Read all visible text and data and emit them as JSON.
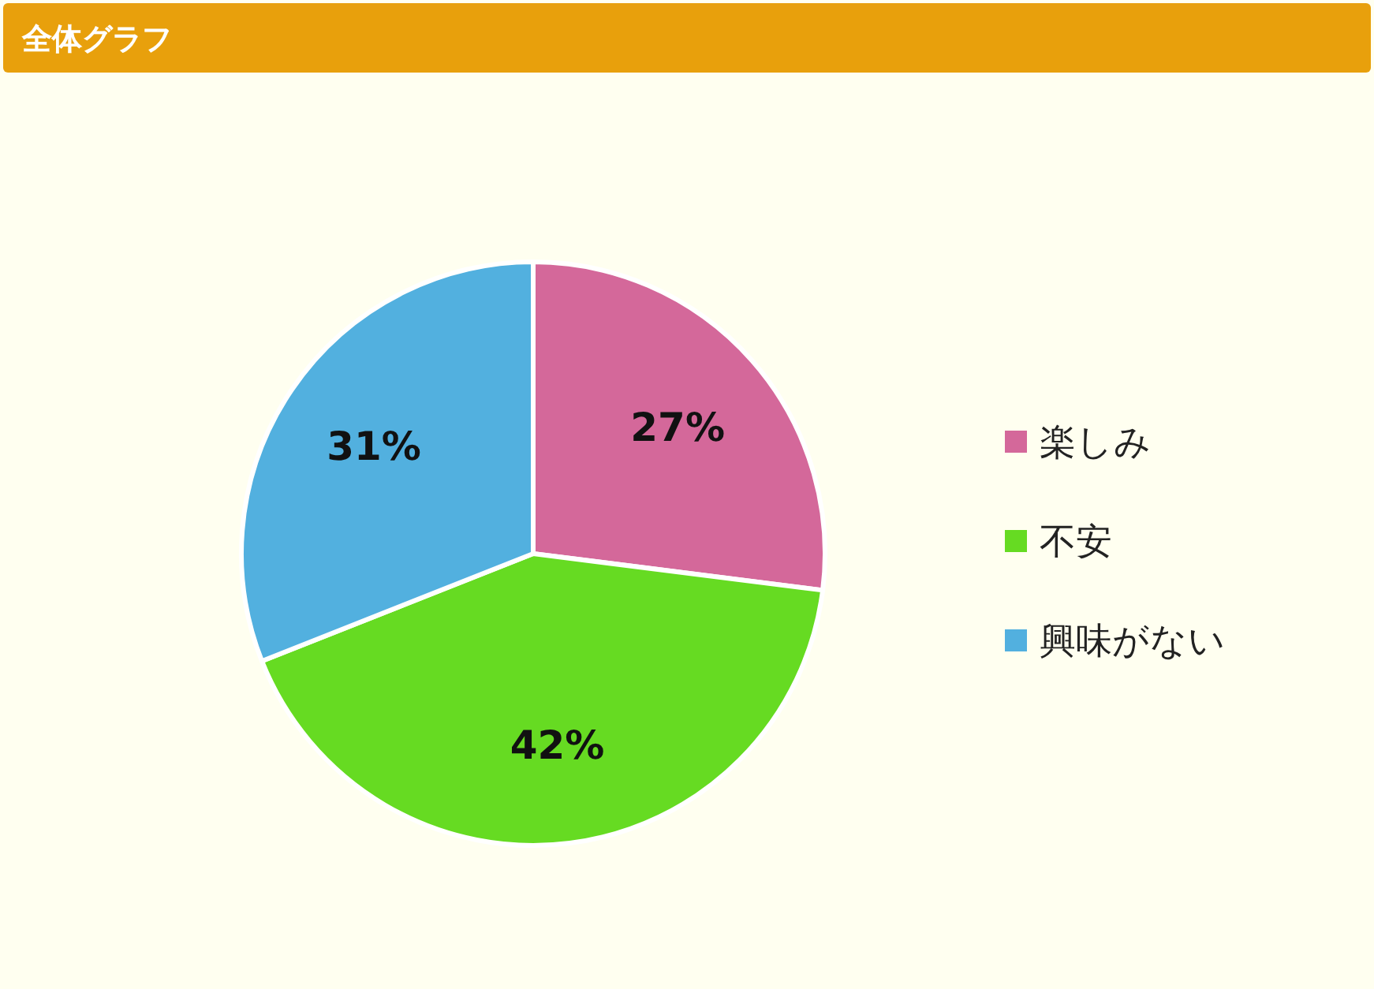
{
  "chart_data": {
    "type": "pie",
    "title": "全体グラフ",
    "categories": [
      "楽しみ",
      "不安",
      "興味がない"
    ],
    "values": [
      27,
      42,
      31
    ],
    "colors": [
      "#d4689a",
      "#66db22",
      "#52b0df"
    ],
    "value_labels": [
      "27%",
      "42%",
      "31%"
    ],
    "legend": "right"
  }
}
